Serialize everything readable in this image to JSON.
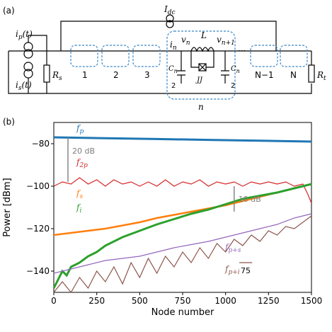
{
  "panel_a": {
    "label": "(a)",
    "idc": "I",
    "idc_sub": "dc",
    "ip": "i",
    "ip_sub": "p",
    "ip_arg": "(t)",
    "is": "i",
    "is_sub": "s",
    "is_arg": "(t)",
    "rs": "R",
    "rs_sub": "s",
    "rt": "R",
    "rt_sub": "t",
    "cells_left": [
      "1",
      "2",
      "3"
    ],
    "cells_right": [
      "N−1",
      "N"
    ],
    "in": "i",
    "in_sub": "n",
    "vn": "v",
    "vn_sub": "n",
    "vn1": "v",
    "vn1_sub": "n+1",
    "L": "L",
    "jj": "JJ",
    "cn": "C",
    "cn_sub": "n",
    "cn_den": "2",
    "n_label": "n",
    "dots": "···",
    "colors": {
      "circuit": "#000000",
      "box": "#3a86c8"
    }
  },
  "panel_b": {
    "label": "(b)",
    "annot_20db": "20 dB",
    "annot_10db": "10 dB",
    "annot_75": "75",
    "colors": {
      "fp": "#1f77b4",
      "f2p": "#d62728",
      "fs": "#ff7f0e",
      "fi": "#2ca02c",
      "fps": "#9467bd",
      "fpi": "#8c564b",
      "annot": "#7f7f7f"
    }
  },
  "chart_data": {
    "type": "line",
    "xlabel": "Node number",
    "ylabel": "Power [dBm]",
    "xlim": [
      0,
      1500
    ],
    "ylim": [
      -150,
      -70
    ],
    "xticks": [
      0,
      250,
      500,
      750,
      1000,
      1250,
      1500
    ],
    "yticks": [
      -80,
      -100,
      -120,
      -140
    ],
    "grid": false,
    "series": [
      {
        "name": "f",
        "sub": "p",
        "color": "#1f77b4",
        "x": [
          0,
          300,
          600,
          900,
          1200,
          1500
        ],
        "y": [
          -77,
          -77.4,
          -77.8,
          -78.2,
          -78.6,
          -79
        ]
      },
      {
        "name": "f",
        "sub": "2p",
        "color": "#d62728",
        "x": [
          0,
          50,
          100,
          150,
          200,
          250,
          300,
          350,
          400,
          450,
          500,
          550,
          600,
          650,
          700,
          750,
          800,
          850,
          900,
          950,
          1000,
          1050,
          1100,
          1150,
          1200,
          1250,
          1300,
          1350,
          1400,
          1450,
          1480,
          1500
        ],
        "y": [
          -100,
          -98,
          -99,
          -96,
          -99,
          -97,
          -100,
          -97,
          -99,
          -98,
          -100,
          -98,
          -100,
          -97,
          -100,
          -98,
          -99,
          -97,
          -100,
          -98,
          -99,
          -98,
          -100,
          -98,
          -99,
          -98,
          -99,
          -98,
          -100,
          -99,
          -104,
          -108
        ]
      },
      {
        "name": "f",
        "sub": "s",
        "color": "#ff7f0e",
        "x": [
          0,
          100,
          200,
          300,
          400,
          500,
          600,
          700,
          800,
          900,
          1000,
          1100,
          1200,
          1300,
          1400,
          1500
        ],
        "y": [
          -123,
          -122,
          -121,
          -120,
          -118.5,
          -117,
          -115,
          -113.5,
          -112,
          -110.5,
          -109,
          -107,
          -105,
          -103,
          -101,
          -99
        ]
      },
      {
        "name": "f",
        "sub": "i",
        "color": "#2ca02c",
        "x": [
          0,
          25,
          50,
          75,
          100,
          150,
          200,
          250,
          300,
          400,
          500,
          600,
          700,
          800,
          900,
          1000,
          1100,
          1200,
          1300,
          1400,
          1500
        ],
        "y": [
          -148,
          -144,
          -140,
          -142,
          -138,
          -136,
          -133,
          -131,
          -128,
          -124,
          -121,
          -118,
          -115.5,
          -113,
          -111,
          -108.5,
          -106,
          -104.5,
          -103,
          -101,
          -99
        ]
      },
      {
        "name": "f",
        "sub": "p+s",
        "color": "#9467bd",
        "x": [
          0,
          100,
          200,
          300,
          400,
          500,
          600,
          700,
          800,
          900,
          1000,
          1100,
          1200,
          1300,
          1400,
          1500
        ],
        "y": [
          -141,
          -139,
          -137,
          -135,
          -134,
          -133,
          -131,
          -129,
          -127.5,
          -126,
          -124,
          -122,
          -120,
          -118,
          -115,
          -113
        ]
      },
      {
        "name": "f",
        "sub": "p+i",
        "color": "#8c564b",
        "x": [
          0,
          50,
          100,
          150,
          200,
          250,
          300,
          350,
          400,
          450,
          500,
          550,
          600,
          650,
          700,
          750,
          800,
          850,
          900,
          950,
          1000,
          1050,
          1100,
          1150,
          1200,
          1250,
          1300,
          1350,
          1400,
          1450,
          1500
        ],
        "y": [
          -150,
          -145,
          -150,
          -143,
          -148,
          -140,
          -145,
          -138,
          -146,
          -136,
          -143,
          -134,
          -141,
          -133,
          -138,
          -131,
          -136,
          -129,
          -134,
          -127,
          -131,
          -125,
          -128,
          -123,
          -126,
          -121,
          -123,
          -119,
          -120,
          -117,
          -114
        ]
      }
    ]
  }
}
